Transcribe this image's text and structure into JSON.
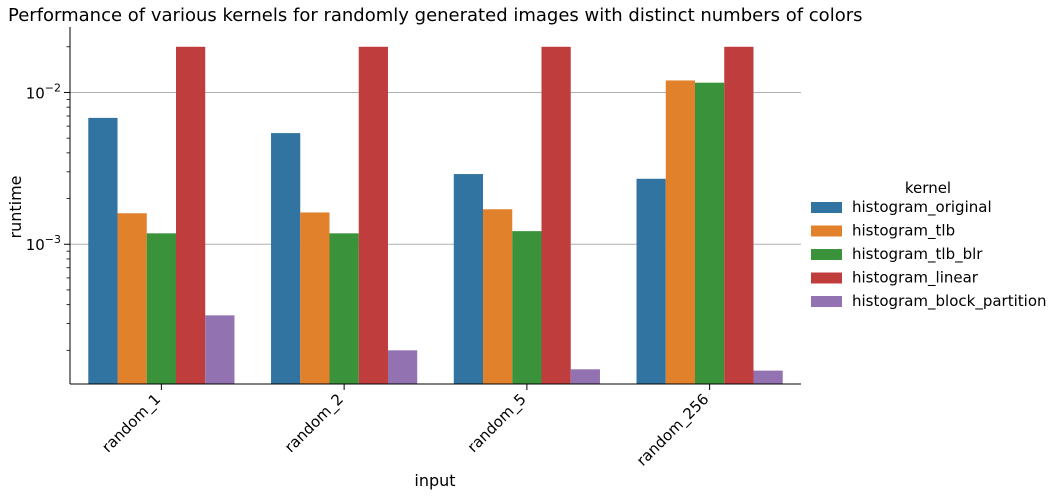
{
  "chart_data": {
    "type": "bar",
    "title": "Performance of various kernels for randomly generated images with distinct numbers of colors",
    "xlabel": "input",
    "ylabel": "runtime",
    "yscale": "log",
    "ylim": [
      0.00012,
      0.027
    ],
    "y_ticks": [
      {
        "value": 0.001,
        "base": "10",
        "exp": "−3"
      },
      {
        "value": 0.01,
        "base": "10",
        "exp": "−2"
      }
    ],
    "grid": "horizontal major",
    "categories": [
      "random_1",
      "random_2",
      "random_5",
      "random_256"
    ],
    "legend": {
      "title": "kernel",
      "placement": "right"
    },
    "series": [
      {
        "name": "histogram_original",
        "color": "#3274a1",
        "values": [
          0.0068,
          0.0054,
          0.0029,
          0.0027
        ]
      },
      {
        "name": "histogram_tlb",
        "color": "#e1812c",
        "values": [
          0.0016,
          0.00162,
          0.0017,
          0.012
        ]
      },
      {
        "name": "histogram_tlb_blr",
        "color": "#3a923a",
        "values": [
          0.00118,
          0.00118,
          0.00122,
          0.0116
        ]
      },
      {
        "name": "histogram_linear",
        "color": "#c03d3e",
        "values": [
          0.02,
          0.02,
          0.02,
          0.02
        ]
      },
      {
        "name": "histogram_block_partition",
        "color": "#9372b2",
        "values": [
          0.00034,
          0.0002,
          0.00015,
          0.000147
        ]
      }
    ]
  }
}
